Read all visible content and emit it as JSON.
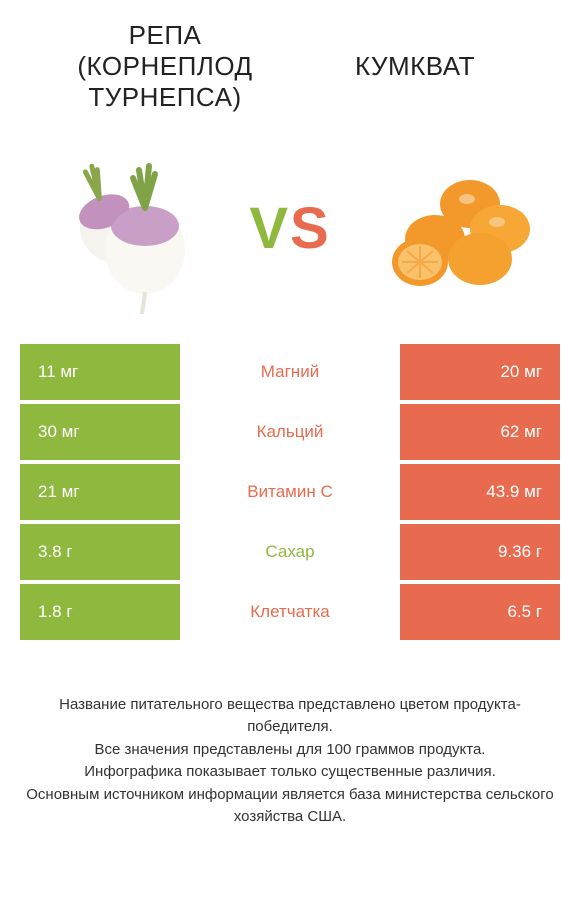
{
  "colors": {
    "green": "#8fb83f",
    "orange": "#e96b4f",
    "text": "#333333",
    "background": "#ffffff"
  },
  "titles": {
    "left_line1": "РЕПА",
    "left_line2": "(КОРНЕПЛОД",
    "left_line3": "ТУРНЕПСА)",
    "right": "КУМКВАТ"
  },
  "vs": {
    "v": "V",
    "s": "S"
  },
  "rows": [
    {
      "label": "Магний",
      "left": "11 мг",
      "right": "20 мг",
      "winner": "right"
    },
    {
      "label": "Кальций",
      "left": "30 мг",
      "right": "62 мг",
      "winner": "right"
    },
    {
      "label": "Витамин C",
      "left": "21 мг",
      "right": "43.9 мг",
      "winner": "right"
    },
    {
      "label": "Сахар",
      "left": "3.8 г",
      "right": "9.36 г",
      "winner": "left"
    },
    {
      "label": "Клетчатка",
      "left": "1.8 г",
      "right": "6.5 г",
      "winner": "right"
    }
  ],
  "footer": {
    "line1": "Название питательного вещества представлено цветом продукта-победителя.",
    "line2": "Все значения представлены для 100 граммов продукта.",
    "line3": "Инфографика показывает только существенные различия.",
    "line4": "Основным источником информации является база министерства сельского хозяйства США."
  }
}
